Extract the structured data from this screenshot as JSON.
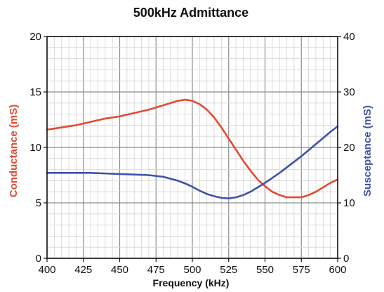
{
  "chart_data": {
    "type": "line",
    "title": "500kHz Admittance",
    "xlabel": "Frequency (kHz)",
    "ylabel_left": "Conductance (mS)",
    "ylabel_right": "Susceptance (mS)",
    "xlim": [
      400,
      600
    ],
    "ylim_left": [
      0,
      20
    ],
    "ylim_right": [
      0,
      40
    ],
    "x_ticks": [
      400,
      425,
      450,
      475,
      500,
      525,
      550,
      575,
      600
    ],
    "y_ticks_left": [
      0,
      5,
      10,
      15,
      20
    ],
    "y_ticks_right": [
      0,
      10,
      20,
      30,
      40
    ],
    "grid": true,
    "colors": {
      "conductance": "#e34a33",
      "susceptance": "#3f53a6",
      "grid": "#8c8c8c"
    },
    "series": [
      {
        "name": "Conductance (mS)",
        "axis": "left",
        "x": [
          400,
          410,
          420,
          430,
          440,
          450,
          460,
          470,
          480,
          490,
          495,
          500,
          505,
          510,
          515,
          520,
          525,
          530,
          535,
          540,
          545,
          550,
          555,
          560,
          565,
          570,
          575,
          580,
          585,
          590,
          595,
          600
        ],
        "y": [
          11.6,
          11.8,
          12.0,
          12.3,
          12.6,
          12.8,
          13.1,
          13.4,
          13.8,
          14.2,
          14.3,
          14.2,
          13.9,
          13.4,
          12.7,
          11.8,
          10.8,
          9.8,
          8.8,
          7.9,
          7.1,
          6.5,
          6.0,
          5.7,
          5.5,
          5.5,
          5.5,
          5.7,
          6.0,
          6.4,
          6.8,
          7.1
        ]
      },
      {
        "name": "Susceptance (mS)",
        "axis": "right",
        "x": [
          400,
          410,
          420,
          430,
          440,
          450,
          460,
          470,
          480,
          490,
          495,
          500,
          505,
          510,
          515,
          520,
          525,
          530,
          535,
          540,
          545,
          550,
          555,
          560,
          565,
          570,
          575,
          580,
          585,
          590,
          595,
          600
        ],
        "y": [
          15.4,
          15.4,
          15.4,
          15.4,
          15.3,
          15.2,
          15.1,
          15.0,
          14.7,
          14.0,
          13.5,
          12.9,
          12.2,
          11.6,
          11.2,
          10.9,
          10.8,
          11.0,
          11.4,
          12.0,
          12.8,
          13.6,
          14.5,
          15.4,
          16.4,
          17.4,
          18.4,
          19.5,
          20.6,
          21.7,
          22.8,
          23.8
        ]
      }
    ]
  }
}
